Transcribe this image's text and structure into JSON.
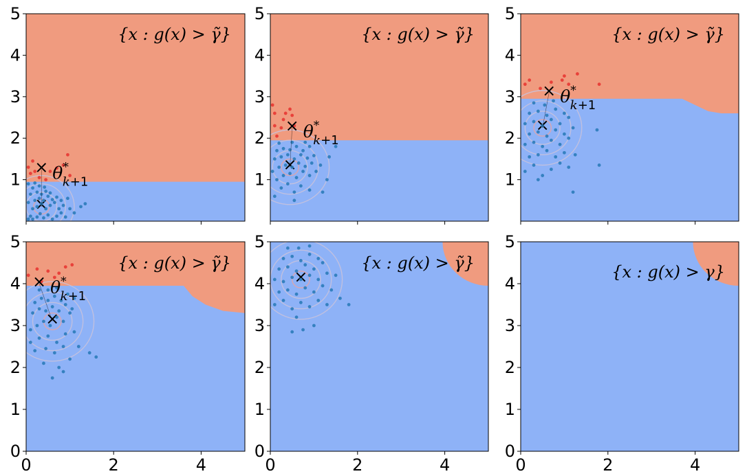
{
  "colors": {
    "feasible_region": "#f09b7f",
    "infeasible_region": "#8eb2f7",
    "sample_point": "#2b7bb9",
    "elite_point": "#e8413a",
    "contour": "#c9c2dc",
    "contour_center": "#e8a3a3",
    "axis": "#000000"
  },
  "chart_data": [
    {
      "type": "scatter",
      "panel": 1,
      "xlim": [
        0,
        5
      ],
      "ylim": [
        0,
        5
      ],
      "xticks": [],
      "yticks": [
        "1",
        "2",
        "3",
        "4",
        "5"
      ],
      "region_label": "{x : g(x) > γ̃}",
      "region_label_placement": "top-right",
      "boundary": [
        [
          0,
          0.95
        ],
        [
          5,
          0.95
        ]
      ],
      "theta_star": {
        "label": "θ*k+1",
        "x": 0.35,
        "y": 1.25
      },
      "distribution_mean": [
        0.35,
        0.35
      ],
      "contour_radii": [
        0.18,
        0.35,
        0.55,
        0.75
      ],
      "samples": [
        [
          0.05,
          0.05
        ],
        [
          0.1,
          0.12
        ],
        [
          0.15,
          0.05
        ],
        [
          0.25,
          0.1
        ],
        [
          0.32,
          0.18
        ],
        [
          0.4,
          0.08
        ],
        [
          0.5,
          0.15
        ],
        [
          0.6,
          0.05
        ],
        [
          0.7,
          0.12
        ],
        [
          0.8,
          0.2
        ],
        [
          0.9,
          0.1
        ],
        [
          1.0,
          0.3
        ],
        [
          1.1,
          0.2
        ],
        [
          1.25,
          0.35
        ],
        [
          0.15,
          0.3
        ],
        [
          0.25,
          0.35
        ],
        [
          0.35,
          0.42
        ],
        [
          0.45,
          0.3
        ],
        [
          0.55,
          0.38
        ],
        [
          0.65,
          0.45
        ],
        [
          0.75,
          0.3
        ],
        [
          0.85,
          0.38
        ],
        [
          0.05,
          0.45
        ],
        [
          0.2,
          0.5
        ],
        [
          0.3,
          0.55
        ],
        [
          0.4,
          0.5
        ],
        [
          0.5,
          0.6
        ],
        [
          0.6,
          0.52
        ],
        [
          0.7,
          0.58
        ],
        [
          0.8,
          0.5
        ],
        [
          0.1,
          0.65
        ],
        [
          0.25,
          0.7
        ],
        [
          0.35,
          0.65
        ],
        [
          0.45,
          0.72
        ],
        [
          0.55,
          0.68
        ],
        [
          0.15,
          0.8
        ],
        [
          0.3,
          0.85
        ],
        [
          0.42,
          0.82
        ],
        [
          0.05,
          0.9
        ],
        [
          0.2,
          0.92
        ],
        [
          1.35,
          0.42
        ],
        [
          0.95,
          0.55
        ]
      ],
      "elite": [
        [
          0.05,
          1.3
        ],
        [
          0.1,
          1.15
        ],
        [
          0.2,
          1.2
        ],
        [
          0.3,
          1.05
        ],
        [
          0.15,
          1.45
        ],
        [
          0.55,
          1.2
        ],
        [
          0.85,
          1.35
        ],
        [
          0.95,
          1.6
        ],
        [
          0.7,
          1.28
        ],
        [
          1.0,
          1.1
        ],
        [
          0.45,
          1.0
        ]
      ]
    },
    {
      "type": "scatter",
      "panel": 2,
      "xlim": [
        0,
        5
      ],
      "ylim": [
        0,
        5
      ],
      "xticks": [],
      "yticks": [
        "1",
        "2",
        "3",
        "4",
        "5"
      ],
      "region_label": "{x : g(x) > γ̃}",
      "region_label_placement": "top-right",
      "boundary": [
        [
          0,
          1.95
        ],
        [
          5,
          1.95
        ]
      ],
      "theta_star": {
        "label": "θ*k+1",
        "x": 0.5,
        "y": 2.25
      },
      "distribution_mean": [
        0.45,
        1.3
      ],
      "contour_radii": [
        0.2,
        0.4,
        0.65,
        0.9
      ],
      "samples": [
        [
          0.1,
          0.6
        ],
        [
          0.25,
          0.8
        ],
        [
          0.4,
          0.9
        ],
        [
          0.55,
          0.7
        ],
        [
          0.7,
          0.85
        ],
        [
          0.9,
          0.75
        ],
        [
          1.2,
          0.7
        ],
        [
          0.15,
          1.0
        ],
        [
          0.3,
          1.1
        ],
        [
          0.45,
          1.15
        ],
        [
          0.6,
          1.05
        ],
        [
          0.75,
          1.2
        ],
        [
          0.9,
          1.1
        ],
        [
          1.05,
          1.2
        ],
        [
          1.3,
          1.0
        ],
        [
          0.2,
          1.3
        ],
        [
          0.35,
          1.35
        ],
        [
          0.5,
          1.3
        ],
        [
          0.65,
          1.4
        ],
        [
          0.8,
          1.32
        ],
        [
          0.95,
          1.4
        ],
        [
          1.15,
          1.35
        ],
        [
          0.1,
          1.5
        ],
        [
          0.25,
          1.55
        ],
        [
          0.4,
          1.6
        ],
        [
          0.55,
          1.5
        ],
        [
          0.7,
          1.6
        ],
        [
          0.85,
          1.52
        ],
        [
          1.0,
          1.58
        ],
        [
          0.15,
          1.7
        ],
        [
          0.3,
          1.75
        ],
        [
          0.45,
          1.72
        ],
        [
          0.6,
          1.8
        ],
        [
          0.75,
          1.7
        ],
        [
          0.9,
          1.8
        ],
        [
          0.2,
          1.88
        ],
        [
          0.5,
          1.9
        ],
        [
          0.8,
          1.9
        ],
        [
          1.5,
          1.8
        ],
        [
          1.35,
          1.55
        ],
        [
          0.05,
          1.2
        ],
        [
          0.55,
          0.5
        ]
      ],
      "elite": [
        [
          0.05,
          2.8
        ],
        [
          0.1,
          2.3
        ],
        [
          0.25,
          2.25
        ],
        [
          0.35,
          2.6
        ],
        [
          0.45,
          2.7
        ],
        [
          0.55,
          2.3
        ],
        [
          0.15,
          2.05
        ],
        [
          0.3,
          2.45
        ],
        [
          0.5,
          2.55
        ],
        [
          0.1,
          2.6
        ]
      ]
    },
    {
      "type": "scatter",
      "panel": 3,
      "xlim": [
        0,
        5
      ],
      "ylim": [
        0,
        5
      ],
      "xticks": [],
      "yticks": [
        "1",
        "2",
        "3",
        "4",
        "5"
      ],
      "region_label": "{x : g(x) > γ̃}",
      "region_label_placement": "top-right",
      "boundary": [
        [
          0,
          2.95
        ],
        [
          3.7,
          2.95
        ],
        [
          4.0,
          2.8
        ],
        [
          4.3,
          2.65
        ],
        [
          4.6,
          2.6
        ],
        [
          5,
          2.6
        ]
      ],
      "theta_star": {
        "label": "θ*k+1",
        "x": 0.65,
        "y": 3.1
      },
      "distribution_mean": [
        0.5,
        2.25
      ],
      "contour_radii": [
        0.2,
        0.4,
        0.65,
        0.9
      ],
      "samples": [
        [
          0.1,
          1.2
        ],
        [
          0.3,
          1.35
        ],
        [
          0.5,
          1.1
        ],
        [
          0.7,
          1.25
        ],
        [
          0.9,
          1.4
        ],
        [
          1.1,
          1.3
        ],
        [
          0.2,
          1.55
        ],
        [
          0.4,
          1.6
        ],
        [
          0.6,
          1.7
        ],
        [
          0.8,
          1.55
        ],
        [
          1.0,
          1.65
        ],
        [
          1.25,
          1.6
        ],
        [
          0.1,
          1.85
        ],
        [
          0.3,
          1.9
        ],
        [
          0.5,
          1.8
        ],
        [
          0.7,
          1.95
        ],
        [
          0.9,
          1.85
        ],
        [
          1.1,
          2.0
        ],
        [
          0.2,
          2.1
        ],
        [
          0.4,
          2.15
        ],
        [
          0.6,
          2.05
        ],
        [
          0.8,
          2.2
        ],
        [
          1.0,
          2.1
        ],
        [
          1.2,
          2.25
        ],
        [
          0.1,
          2.35
        ],
        [
          0.3,
          2.4
        ],
        [
          0.5,
          2.3
        ],
        [
          0.7,
          2.45
        ],
        [
          0.9,
          2.35
        ],
        [
          1.1,
          2.5
        ],
        [
          0.2,
          2.6
        ],
        [
          0.4,
          2.65
        ],
        [
          0.6,
          2.55
        ],
        [
          0.8,
          2.7
        ],
        [
          1.0,
          2.6
        ],
        [
          0.3,
          2.85
        ],
        [
          0.55,
          2.8
        ],
        [
          0.75,
          2.9
        ],
        [
          1.75,
          2.2
        ],
        [
          1.8,
          1.35
        ],
        [
          1.2,
          0.7
        ],
        [
          0.4,
          1.0
        ]
      ],
      "elite": [
        [
          0.1,
          3.3
        ],
        [
          0.2,
          3.4
        ],
        [
          0.45,
          3.2
        ],
        [
          0.7,
          3.35
        ],
        [
          0.95,
          3.4
        ],
        [
          1.1,
          3.3
        ],
        [
          1.3,
          3.55
        ],
        [
          1.0,
          3.5
        ],
        [
          1.8,
          3.3
        ]
      ]
    },
    {
      "type": "scatter",
      "panel": 4,
      "xlim": [
        0,
        5
      ],
      "ylim": [
        0,
        5
      ],
      "xticks": [],
      "yticks": [
        "0",
        "1",
        "2",
        "3",
        "4",
        "5"
      ],
      "region_label": "{x : g(x) > γ̃}",
      "region_label_placement": "top-right",
      "boundary": [
        [
          0,
          3.95
        ],
        [
          3.6,
          3.95
        ],
        [
          3.8,
          3.7
        ],
        [
          4.1,
          3.5
        ],
        [
          4.5,
          3.35
        ],
        [
          5,
          3.3
        ]
      ],
      "theta_star": {
        "label": "θ*k+1",
        "x": 0.3,
        "y": 4.0
      },
      "distribution_mean": [
        0.6,
        3.1
      ],
      "contour_radii": [
        0.2,
        0.45,
        0.7,
        0.95
      ],
      "samples": [
        [
          0.1,
          2.9
        ],
        [
          0.25,
          3.0
        ],
        [
          0.4,
          3.1
        ],
        [
          0.55,
          3.0
        ],
        [
          0.7,
          3.2
        ],
        [
          0.85,
          3.1
        ],
        [
          1.0,
          3.3
        ],
        [
          0.15,
          3.3
        ],
        [
          0.3,
          3.4
        ],
        [
          0.45,
          3.35
        ],
        [
          0.6,
          3.45
        ],
        [
          0.75,
          3.35
        ],
        [
          0.9,
          3.5
        ],
        [
          1.05,
          3.4
        ],
        [
          0.2,
          3.55
        ],
        [
          0.35,
          3.65
        ],
        [
          0.5,
          3.6
        ],
        [
          0.65,
          3.7
        ],
        [
          0.8,
          3.6
        ],
        [
          0.95,
          3.75
        ],
        [
          1.1,
          3.65
        ],
        [
          0.3,
          3.85
        ],
        [
          0.5,
          3.85
        ],
        [
          0.7,
          3.9
        ],
        [
          0.1,
          2.6
        ],
        [
          0.3,
          2.7
        ],
        [
          0.5,
          2.75
        ],
        [
          0.7,
          2.6
        ],
        [
          0.9,
          2.8
        ],
        [
          1.1,
          2.85
        ],
        [
          0.2,
          2.4
        ],
        [
          0.45,
          2.45
        ],
        [
          0.65,
          2.35
        ],
        [
          0.85,
          2.5
        ],
        [
          1.2,
          2.5
        ],
        [
          0.4,
          2.1
        ],
        [
          0.75,
          2.0
        ],
        [
          1.0,
          2.2
        ],
        [
          1.45,
          2.35
        ],
        [
          1.6,
          2.25
        ],
        [
          0.6,
          1.75
        ],
        [
          0.85,
          1.9
        ]
      ],
      "elite": [
        [
          0.05,
          4.2
        ],
        [
          0.25,
          4.35
        ],
        [
          0.5,
          4.3
        ],
        [
          0.65,
          4.15
        ],
        [
          0.9,
          4.4
        ],
        [
          1.05,
          4.45
        ],
        [
          0.35,
          4.05
        ],
        [
          0.75,
          4.25
        ]
      ]
    },
    {
      "type": "scatter",
      "panel": 5,
      "xlim": [
        0,
        5
      ],
      "ylim": [
        0,
        5
      ],
      "xticks": [],
      "yticks": [
        "0",
        "1",
        "2",
        "3",
        "4",
        "5"
      ],
      "region_label": "{x : g(x) > γ̃}",
      "region_label_placement": "top-right",
      "feasible_arc": {
        "center": [
          5,
          5
        ],
        "radius": 1.05
      },
      "theta_star": null,
      "distribution_mean": [
        0.7,
        4.1
      ],
      "contour_radii": [
        0.2,
        0.45,
        0.7,
        0.95
      ],
      "samples": [
        [
          0.1,
          3.5
        ],
        [
          0.3,
          3.6
        ],
        [
          0.5,
          3.4
        ],
        [
          0.7,
          3.55
        ],
        [
          0.9,
          3.45
        ],
        [
          1.1,
          3.6
        ],
        [
          1.3,
          3.5
        ],
        [
          0.2,
          3.8
        ],
        [
          0.4,
          3.85
        ],
        [
          0.6,
          3.75
        ],
        [
          0.8,
          3.9
        ],
        [
          1.0,
          3.8
        ],
        [
          1.2,
          3.95
        ],
        [
          1.4,
          3.85
        ],
        [
          0.1,
          4.1
        ],
        [
          0.3,
          4.05
        ],
        [
          0.5,
          4.15
        ],
        [
          0.7,
          4.1
        ],
        [
          0.9,
          4.2
        ],
        [
          1.1,
          4.1
        ],
        [
          1.3,
          4.25
        ],
        [
          0.2,
          4.35
        ],
        [
          0.4,
          4.4
        ],
        [
          0.6,
          4.3
        ],
        [
          0.8,
          4.45
        ],
        [
          1.0,
          4.35
        ],
        [
          1.2,
          4.5
        ],
        [
          0.3,
          4.6
        ],
        [
          0.5,
          4.65
        ],
        [
          0.7,
          4.55
        ],
        [
          0.9,
          4.7
        ],
        [
          1.1,
          4.6
        ],
        [
          0.4,
          4.85
        ],
        [
          0.65,
          4.85
        ],
        [
          0.9,
          4.9
        ],
        [
          1.5,
          4.2
        ],
        [
          1.6,
          3.65
        ],
        [
          0.6,
          3.2
        ],
        [
          0.75,
          2.9
        ],
        [
          1.0,
          3.0
        ],
        [
          0.5,
          2.85
        ],
        [
          1.8,
          3.5
        ]
      ],
      "elite": []
    },
    {
      "type": "scatter",
      "panel": 6,
      "xlim": [
        0,
        5
      ],
      "ylim": [
        0,
        5
      ],
      "xticks": [],
      "yticks": [
        "0",
        "1",
        "2",
        "3",
        "4",
        "5"
      ],
      "region_label": "{x : g(x) > γ}",
      "region_label_placement": "top-right",
      "feasible_arc": {
        "center": [
          5,
          5
        ],
        "radius": 1.05
      },
      "theta_star": null,
      "distribution_mean": null,
      "contour_radii": [],
      "samples": [],
      "elite": []
    }
  ],
  "x_tick_labels": [
    "0",
    "2",
    "4"
  ]
}
